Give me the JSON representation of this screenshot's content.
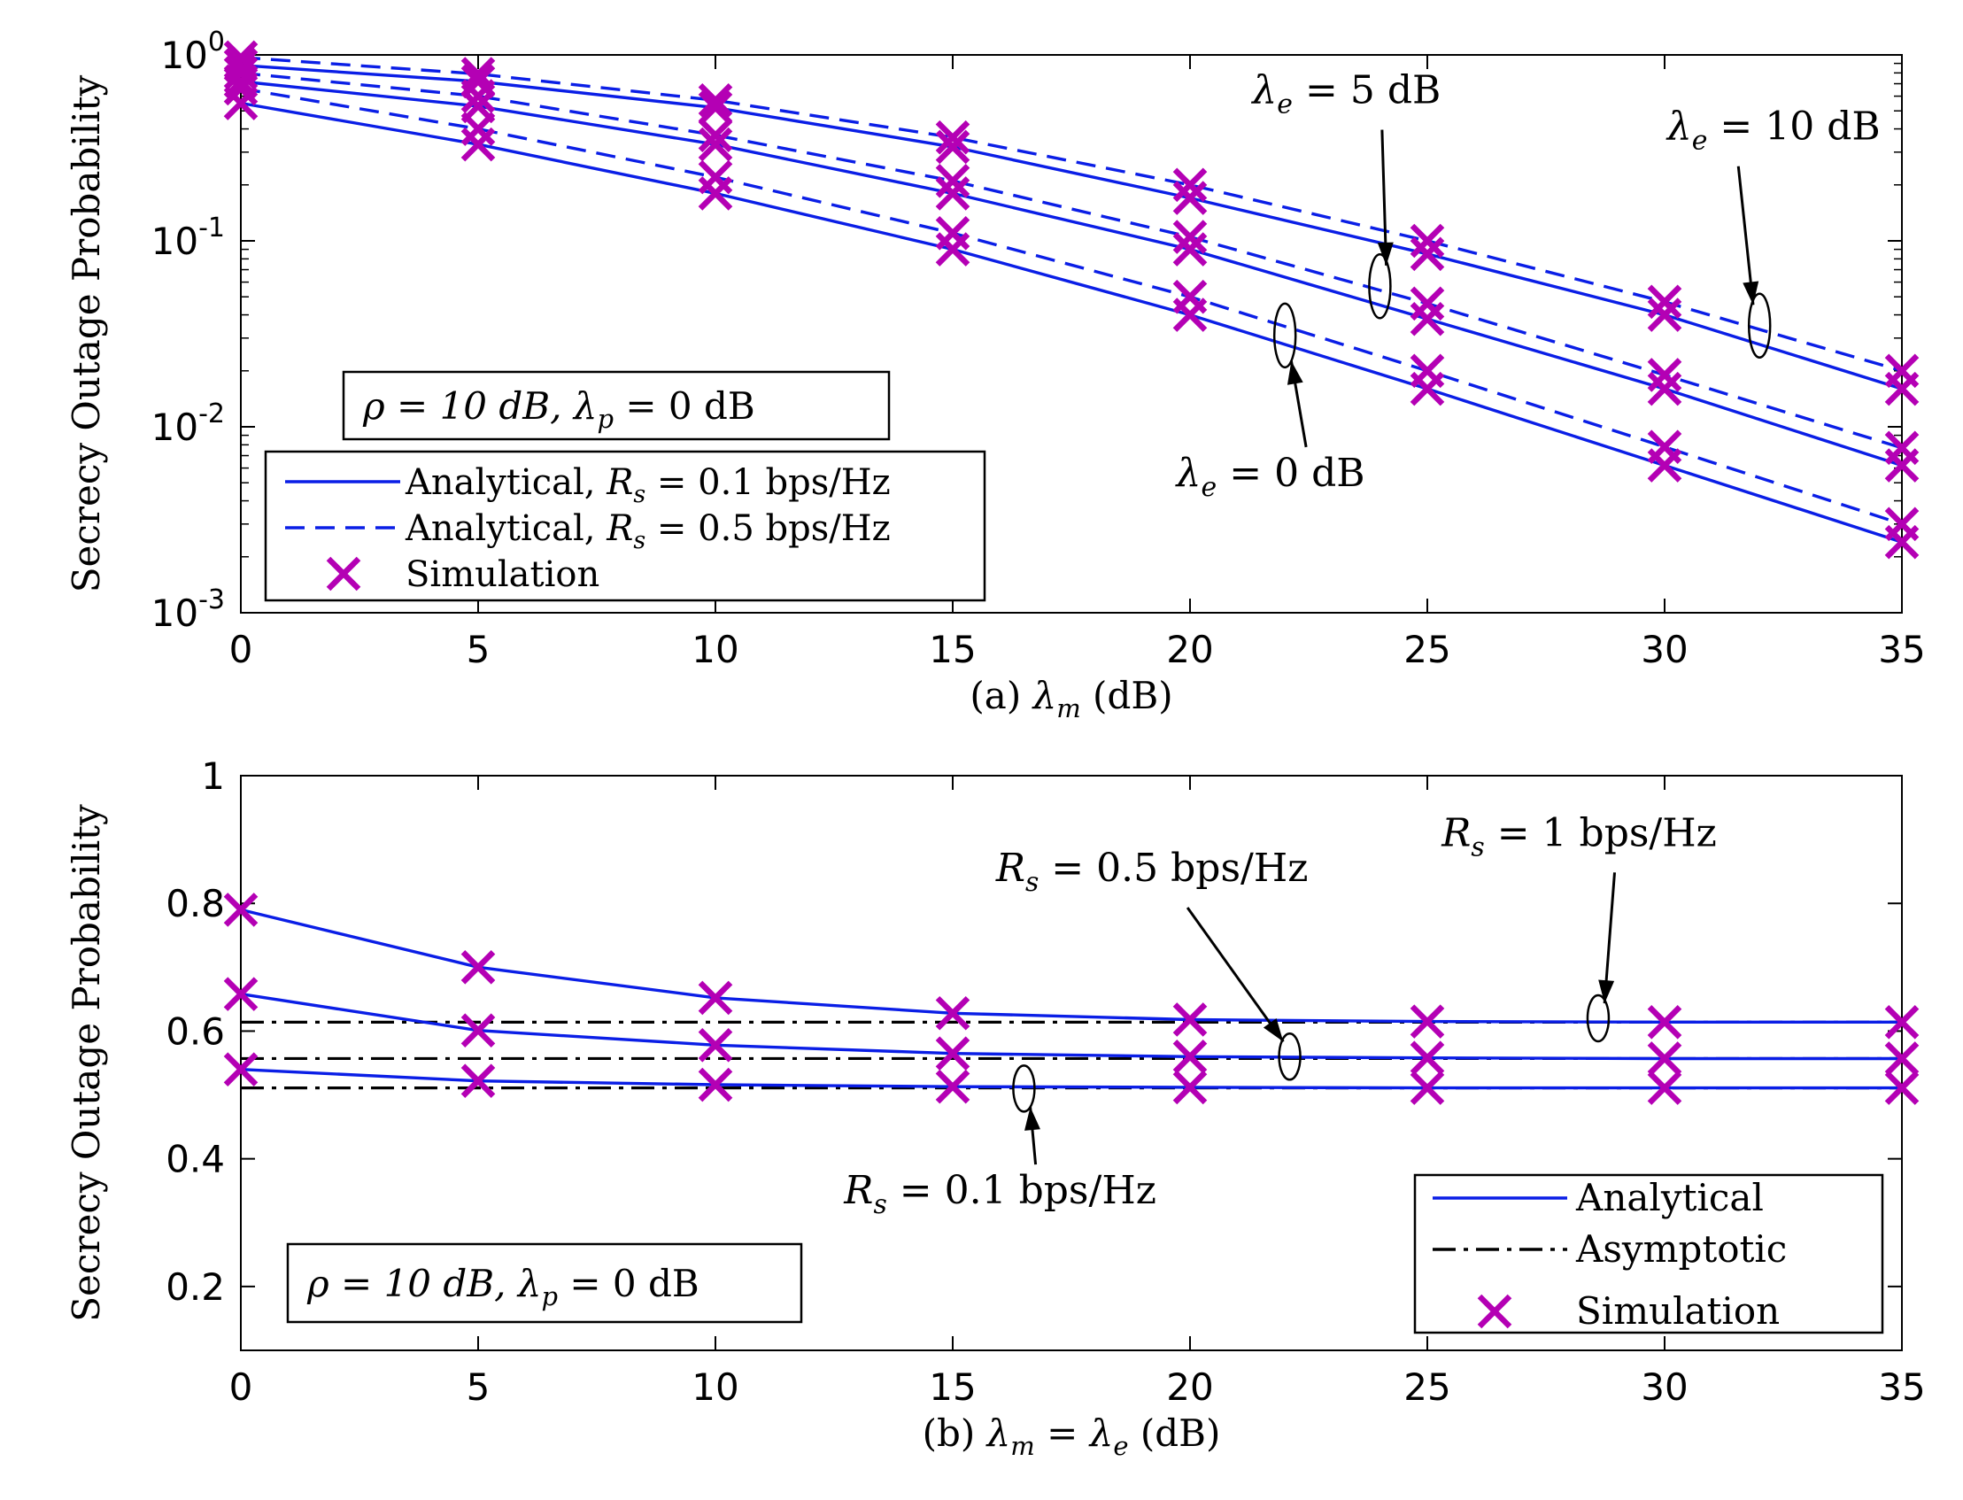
{
  "colors": {
    "analytical": "#0a1ee6",
    "asymptotic": "#000000",
    "simulation": "#b400b4",
    "axis": "#000000"
  },
  "chart_data": [
    {
      "type": "line",
      "id": "a",
      "yscale": "log",
      "xlabel": "(a) λm (dB)",
      "ylabel": "Secrecy Outage Probability",
      "xlim": [
        0,
        35
      ],
      "ylim": [
        0.001,
        1
      ],
      "xticks": [
        0,
        5,
        10,
        15,
        20,
        25,
        30,
        35
      ],
      "yticks": [
        {
          "value": 1,
          "base": "10",
          "exp": "0"
        },
        {
          "value": 0.1,
          "base": "10",
          "exp": "-1"
        },
        {
          "value": 0.01,
          "base": "10",
          "exp": "-2"
        },
        {
          "value": 0.001,
          "base": "10",
          "exp": "-3"
        }
      ],
      "x": [
        0,
        5,
        10,
        15,
        20,
        25,
        30,
        35
      ],
      "series": [
        {
          "name": "Analytical, Rs = 0.1 bps/Hz, λe = 10 dB",
          "style": "solid",
          "values": [
            0.88,
            0.72,
            0.52,
            0.32,
            0.17,
            0.085,
            0.04,
            0.016
          ]
        },
        {
          "name": "Analytical, Rs = 0.5 bps/Hz, λe = 10 dB",
          "style": "dashed",
          "values": [
            0.97,
            0.79,
            0.57,
            0.36,
            0.2,
            0.1,
            0.047,
            0.02
          ]
        },
        {
          "name": "Analytical, Rs = 0.1 bps/Hz, λe = 5 dB",
          "style": "solid",
          "values": [
            0.72,
            0.53,
            0.33,
            0.18,
            0.09,
            0.038,
            0.016,
            0.0062
          ]
        },
        {
          "name": "Analytical, Rs = 0.5 bps/Hz, λe = 5 dB",
          "style": "dashed",
          "values": [
            0.8,
            0.6,
            0.37,
            0.21,
            0.105,
            0.046,
            0.019,
            0.0077
          ]
        },
        {
          "name": "Analytical, Rs = 0.1 bps/Hz, λe = 0 dB",
          "style": "solid",
          "values": [
            0.55,
            0.33,
            0.18,
            0.09,
            0.04,
            0.016,
            0.0062,
            0.0024
          ]
        },
        {
          "name": "Analytical, Rs = 0.5 bps/Hz, λe = 0 dB",
          "style": "dashed",
          "values": [
            0.66,
            0.4,
            0.22,
            0.11,
            0.05,
            0.02,
            0.0078,
            0.003
          ]
        }
      ],
      "simulation_series_index": [
        0,
        1,
        2,
        3,
        4,
        5
      ],
      "legend": {
        "position": "bottom-left",
        "entries": [
          {
            "style": "solid",
            "prefix": "Analytical, ",
            "rs": "R",
            "sub": "s",
            "rest": " = 0.1 bps/Hz"
          },
          {
            "style": "dashed",
            "prefix": "Analytical, ",
            "rs": "R",
            "sub": "s",
            "rest": " = 0.5 bps/Hz"
          },
          {
            "style": "marker",
            "prefix": "Simulation",
            "rs": "",
            "sub": "",
            "rest": ""
          }
        ]
      },
      "params_box": {
        "text1": "ρ = 10 dB, λ",
        "sub": "p",
        "text2": " = 0 dB"
      },
      "annotations": [
        {
          "sym": "λ",
          "sub": "e",
          "rest": " = 5 dB",
          "ellipse": {
            "x": 24.0,
            "y": 0.057
          },
          "text_anchor": {
            "x": 23.3,
            "y": 0.55
          }
        },
        {
          "sym": "λ",
          "sub": "e",
          "rest": " = 10 dB",
          "ellipse": {
            "x": 32.0,
            "y": 0.035
          },
          "text_anchor": {
            "x": 32.3,
            "y": 0.35
          }
        },
        {
          "sym": "λ",
          "sub": "e",
          "rest": " = 0 dB",
          "ellipse": {
            "x": 22.0,
            "y": 0.031
          },
          "text_anchor": {
            "x": 21.7,
            "y": 0.0048
          }
        }
      ]
    },
    {
      "type": "line",
      "id": "b",
      "yscale": "linear",
      "xlabel": "(b) λm = λe (dB)",
      "ylabel": "Secrecy Outage Probability",
      "xlim": [
        0,
        35
      ],
      "ylim": [
        0.1,
        1
      ],
      "xticks": [
        0,
        5,
        10,
        15,
        20,
        25,
        30,
        35
      ],
      "yticks": [
        {
          "value": 0.2,
          "label": "0.2"
        },
        {
          "value": 0.4,
          "label": "0.4"
        },
        {
          "value": 0.6,
          "label": "0.6"
        },
        {
          "value": 0.8,
          "label": "0.8"
        },
        {
          "value": 1,
          "label": "1"
        }
      ],
      "x": [
        0,
        5,
        10,
        15,
        20,
        25,
        30,
        35
      ],
      "series": [
        {
          "name": "Analytical, Rs = 1 bps/Hz",
          "style": "solid",
          "values": [
            0.79,
            0.7,
            0.652,
            0.628,
            0.618,
            0.615,
            0.614,
            0.614
          ]
        },
        {
          "name": "Analytical, Rs = 0.5 bps/Hz",
          "style": "solid",
          "values": [
            0.658,
            0.601,
            0.578,
            0.565,
            0.56,
            0.558,
            0.557,
            0.557
          ]
        },
        {
          "name": "Analytical, Rs = 0.1 bps/Hz",
          "style": "solid",
          "values": [
            0.54,
            0.522,
            0.516,
            0.513,
            0.512,
            0.511,
            0.511,
            0.511
          ]
        }
      ],
      "asymptotic": [
        {
          "name": "Asymptotic, Rs = 1 bps/Hz",
          "value": 0.614
        },
        {
          "name": "Asymptotic, Rs = 0.5 bps/Hz",
          "value": 0.557
        },
        {
          "name": "Asymptotic, Rs = 0.1 bps/Hz",
          "value": 0.511
        }
      ],
      "legend": {
        "position": "bottom-right",
        "entries": [
          {
            "style": "solid",
            "label": "Analytical"
          },
          {
            "style": "dashdot",
            "label": "Asymptotic"
          },
          {
            "style": "marker",
            "label": "Simulation"
          }
        ]
      },
      "params_box": {
        "text1": "ρ = 10 dB, λ",
        "sub": "p",
        "text2": " = 0 dB"
      },
      "annotations": [
        {
          "sym": "R",
          "sub": "s",
          "rest": " = 0.5 bps/Hz",
          "ellipse": {
            "x": 22.1,
            "y": 0.56
          },
          "text_anchor": {
            "x": 19.2,
            "y": 0.835
          }
        },
        {
          "sym": "R",
          "sub": "s",
          "rest": " = 1 bps/Hz",
          "ellipse": {
            "x": 28.6,
            "y": 0.62
          },
          "text_anchor": {
            "x": 28.2,
            "y": 0.89
          }
        },
        {
          "sym": "R",
          "sub": "s",
          "rest": " = 0.1 bps/Hz",
          "ellipse": {
            "x": 16.5,
            "y": 0.51
          },
          "text_anchor": {
            "x": 16.0,
            "y": 0.33
          }
        }
      ]
    }
  ]
}
